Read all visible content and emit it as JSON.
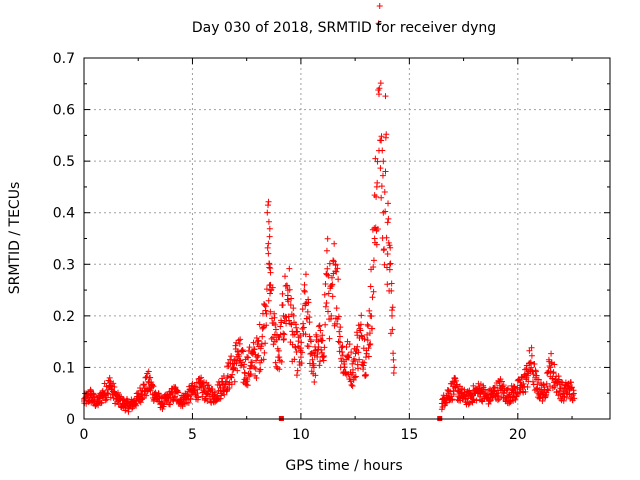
{
  "chart_data": {
    "type": "scatter",
    "title": "Day 030 of 2018, SRMTID for receiver dyng",
    "xlabel": "GPS time / hours",
    "ylabel": "SRMTID / TECUs",
    "xlim": [
      0,
      24.25
    ],
    "ylim": [
      0,
      0.7
    ],
    "xticks": [
      0,
      5,
      10,
      15,
      20
    ],
    "xtick_labels": [
      "0",
      "5",
      "10",
      "15",
      "20"
    ],
    "yticks": [
      0,
      0.1,
      0.2,
      0.3,
      0.4,
      0.5,
      0.6,
      0.7
    ],
    "ytick_labels": [
      "0",
      "0.1",
      "0.2",
      "0.3",
      "0.4",
      "0.5",
      "0.6",
      "0.7"
    ],
    "grid": true,
    "marker": "plus",
    "color": "#ff0000",
    "data_gap_markers": [
      9.1,
      16.4
    ],
    "series": [
      {
        "name": "SRMTID",
        "x": [
          0.0,
          0.3,
          0.6,
          0.9,
          1.2,
          1.5,
          1.8,
          2.1,
          2.4,
          2.7,
          3.0,
          3.3,
          3.6,
          3.9,
          4.2,
          4.5,
          4.8,
          5.1,
          5.4,
          5.7,
          6.0,
          6.3,
          6.6,
          6.9,
          7.1,
          7.4,
          7.7,
          8.0,
          8.3,
          8.5,
          8.55,
          8.6,
          8.8,
          9.0,
          9.2,
          9.4,
          9.6,
          9.8,
          10.0,
          10.2,
          10.4,
          10.6,
          10.8,
          11.0,
          11.2,
          11.4,
          11.6,
          11.8,
          12.0,
          12.2,
          12.4,
          12.6,
          12.8,
          13.0,
          13.2,
          13.4,
          13.5,
          13.6,
          13.7,
          13.8,
          13.9,
          14.0,
          14.1,
          14.2,
          14.3,
          16.5,
          16.8,
          17.1,
          17.4,
          17.7,
          18.0,
          18.3,
          18.6,
          18.9,
          19.2,
          19.5,
          19.8,
          20.1,
          20.4,
          20.6,
          20.9,
          21.2,
          21.5,
          21.8,
          22.1,
          22.4,
          22.6
        ],
        "y": [
          0.035,
          0.045,
          0.03,
          0.05,
          0.065,
          0.04,
          0.03,
          0.025,
          0.035,
          0.055,
          0.07,
          0.045,
          0.03,
          0.04,
          0.05,
          0.035,
          0.045,
          0.055,
          0.06,
          0.05,
          0.045,
          0.06,
          0.08,
          0.1,
          0.13,
          0.09,
          0.11,
          0.12,
          0.18,
          0.34,
          0.3,
          0.26,
          0.15,
          0.12,
          0.2,
          0.25,
          0.17,
          0.13,
          0.12,
          0.22,
          0.16,
          0.1,
          0.15,
          0.12,
          0.28,
          0.2,
          0.3,
          0.16,
          0.1,
          0.12,
          0.09,
          0.14,
          0.16,
          0.12,
          0.2,
          0.35,
          0.45,
          0.63,
          0.54,
          0.4,
          0.48,
          0.32,
          0.3,
          0.2,
          0.1,
          0.03,
          0.05,
          0.06,
          0.045,
          0.04,
          0.05,
          0.055,
          0.04,
          0.05,
          0.06,
          0.045,
          0.05,
          0.06,
          0.08,
          0.11,
          0.06,
          0.05,
          0.1,
          0.07,
          0.05,
          0.06,
          0.04
        ]
      }
    ]
  }
}
